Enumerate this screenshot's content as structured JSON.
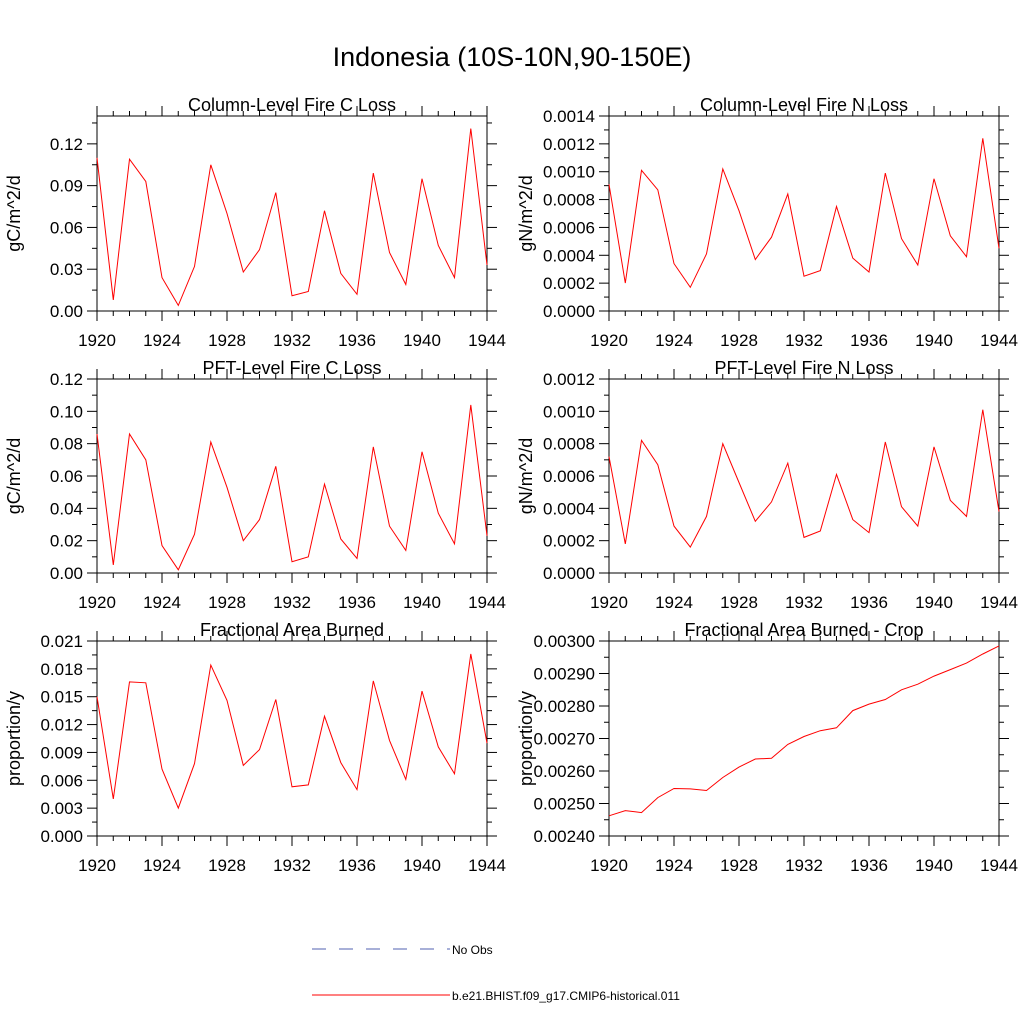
{
  "figure": {
    "title": "Indonesia (10S-10N,90-150E)",
    "series_color": "#ff0000",
    "obs_color": "#5060b0"
  },
  "legend": {
    "obs_label": "No Obs",
    "model_label": "b.e21.BHIST.f09_g17.CMIP6-historical.011"
  },
  "chart_data": [
    {
      "type": "line",
      "title": "Column-Level Fire C Loss",
      "ylabel": "gC/m^2/d",
      "xlim": [
        1920,
        1944
      ],
      "ylim": [
        0,
        0.14
      ],
      "xticks": [
        "1920",
        "1924",
        "1928",
        "1932",
        "1936",
        "1940",
        "1944"
      ],
      "yticks": [
        "0.00",
        "0.03",
        "0.06",
        "0.09",
        "0.12"
      ],
      "x": [
        1920,
        1921,
        1922,
        1923,
        1924,
        1925,
        1926,
        1927,
        1928,
        1929,
        1930,
        1931,
        1932,
        1933,
        1934,
        1935,
        1936,
        1937,
        1938,
        1939,
        1940,
        1941,
        1942,
        1943,
        1944
      ],
      "series": [
        {
          "name": "b.e21.BHIST.f09_g17.CMIP6-historical.011",
          "values": [
            0.11,
            0.008,
            0.109,
            0.093,
            0.024,
            0.004,
            0.032,
            0.105,
            0.07,
            0.028,
            0.044,
            0.085,
            0.011,
            0.014,
            0.072,
            0.027,
            0.012,
            0.099,
            0.042,
            0.019,
            0.095,
            0.047,
            0.024,
            0.131,
            0.033
          ]
        }
      ]
    },
    {
      "type": "line",
      "title": "Column-Level Fire N Loss",
      "ylabel": "gN/m^2/d",
      "xlim": [
        1920,
        1944
      ],
      "ylim": [
        0,
        0.0014
      ],
      "xticks": [
        "1920",
        "1924",
        "1928",
        "1932",
        "1936",
        "1940",
        "1944"
      ],
      "yticks": [
        "0.0000",
        "0.0002",
        "0.0004",
        "0.0006",
        "0.0008",
        "0.0010",
        "0.0012",
        "0.0014"
      ],
      "x": [
        1920,
        1921,
        1922,
        1923,
        1924,
        1925,
        1926,
        1927,
        1928,
        1929,
        1930,
        1931,
        1932,
        1933,
        1934,
        1935,
        1936,
        1937,
        1938,
        1939,
        1940,
        1941,
        1942,
        1943,
        1944
      ],
      "series": [
        {
          "name": "b.e21.BHIST.f09_g17.CMIP6-historical.011",
          "values": [
            0.00091,
            0.0002,
            0.00101,
            0.00087,
            0.00034,
            0.00017,
            0.00041,
            0.00102,
            0.00072,
            0.00037,
            0.00053,
            0.00084,
            0.00025,
            0.00029,
            0.00075,
            0.00038,
            0.00028,
            0.00099,
            0.00052,
            0.00033,
            0.00095,
            0.00054,
            0.00039,
            0.00124,
            0.00045
          ]
        }
      ]
    },
    {
      "type": "line",
      "title": "PFT-Level Fire C Loss",
      "ylabel": "gC/m^2/d",
      "xlim": [
        1920,
        1944
      ],
      "ylim": [
        0,
        0.12
      ],
      "xticks": [
        "1920",
        "1924",
        "1928",
        "1932",
        "1936",
        "1940",
        "1944"
      ],
      "yticks": [
        "0.00",
        "0.02",
        "0.04",
        "0.06",
        "0.08",
        "0.10",
        "0.12"
      ],
      "x": [
        1920,
        1921,
        1922,
        1923,
        1924,
        1925,
        1926,
        1927,
        1928,
        1929,
        1930,
        1931,
        1932,
        1933,
        1934,
        1935,
        1936,
        1937,
        1938,
        1939,
        1940,
        1941,
        1942,
        1943,
        1944
      ],
      "series": [
        {
          "name": "b.e21.BHIST.f09_g17.CMIP6-historical.011",
          "values": [
            0.086,
            0.005,
            0.086,
            0.07,
            0.017,
            0.002,
            0.024,
            0.081,
            0.053,
            0.02,
            0.033,
            0.066,
            0.007,
            0.01,
            0.055,
            0.021,
            0.009,
            0.078,
            0.029,
            0.014,
            0.075,
            0.037,
            0.018,
            0.104,
            0.023
          ]
        }
      ]
    },
    {
      "type": "line",
      "title": "PFT-Level Fire N Loss",
      "ylabel": "gN/m^2/d",
      "xlim": [
        1920,
        1944
      ],
      "ylim": [
        0,
        0.0012
      ],
      "xticks": [
        "1920",
        "1924",
        "1928",
        "1932",
        "1936",
        "1940",
        "1944"
      ],
      "yticks": [
        "0.0000",
        "0.0002",
        "0.0004",
        "0.0006",
        "0.0008",
        "0.0010",
        "0.0012"
      ],
      "x": [
        1920,
        1921,
        1922,
        1923,
        1924,
        1925,
        1926,
        1927,
        1928,
        1929,
        1930,
        1931,
        1932,
        1933,
        1934,
        1935,
        1936,
        1937,
        1938,
        1939,
        1940,
        1941,
        1942,
        1943,
        1944
      ],
      "series": [
        {
          "name": "b.e21.BHIST.f09_g17.CMIP6-historical.011",
          "values": [
            0.00072,
            0.00018,
            0.00082,
            0.00067,
            0.00029,
            0.00016,
            0.00035,
            0.0008,
            0.00056,
            0.00032,
            0.00044,
            0.00068,
            0.00022,
            0.00026,
            0.00061,
            0.00033,
            0.00025,
            0.00081,
            0.00041,
            0.00029,
            0.00078,
            0.00045,
            0.00035,
            0.00101,
            0.00038
          ]
        }
      ]
    },
    {
      "type": "line",
      "title": "Fractional Area Burned",
      "ylabel": "proportion/y",
      "xlim": [
        1920,
        1944
      ],
      "ylim": [
        0,
        0.021
      ],
      "xticks": [
        "1920",
        "1924",
        "1928",
        "1932",
        "1936",
        "1940",
        "1944"
      ],
      "yticks": [
        "0.000",
        "0.003",
        "0.006",
        "0.009",
        "0.012",
        "0.015",
        "0.018",
        "0.021"
      ],
      "x": [
        1920,
        1921,
        1922,
        1923,
        1924,
        1925,
        1926,
        1927,
        1928,
        1929,
        1930,
        1931,
        1932,
        1933,
        1934,
        1935,
        1936,
        1937,
        1938,
        1939,
        1940,
        1941,
        1942,
        1943,
        1944
      ],
      "series": [
        {
          "name": "b.e21.BHIST.f09_g17.CMIP6-historical.011",
          "values": [
            0.015,
            0.004,
            0.0166,
            0.0165,
            0.0072,
            0.003,
            0.0078,
            0.0184,
            0.0146,
            0.0076,
            0.0093,
            0.0147,
            0.0053,
            0.0055,
            0.0129,
            0.0079,
            0.005,
            0.0167,
            0.0103,
            0.0061,
            0.0156,
            0.0096,
            0.0067,
            0.0196,
            0.01
          ]
        }
      ]
    },
    {
      "type": "line",
      "title": "Fractional Area Burned - Crop",
      "ylabel": "proportion/y",
      "xlim": [
        1920,
        1944
      ],
      "ylim": [
        0.0024,
        0.003
      ],
      "xticks": [
        "1920",
        "1924",
        "1928",
        "1932",
        "1936",
        "1940",
        "1944"
      ],
      "yticks": [
        "0.00240",
        "0.00250",
        "0.00260",
        "0.00270",
        "0.00280",
        "0.00290",
        "0.00300"
      ],
      "x": [
        1920,
        1921,
        1922,
        1923,
        1924,
        1925,
        1926,
        1927,
        1928,
        1929,
        1930,
        1931,
        1932,
        1933,
        1934,
        1935,
        1936,
        1937,
        1938,
        1939,
        1940,
        1941,
        1942,
        1943,
        1944
      ],
      "series": [
        {
          "name": "b.e21.BHIST.f09_g17.CMIP6-historical.011",
          "values": [
            0.002462,
            0.002478,
            0.002472,
            0.002518,
            0.002546,
            0.002545,
            0.00254,
            0.00258,
            0.002612,
            0.002637,
            0.002639,
            0.002682,
            0.002706,
            0.002724,
            0.002733,
            0.002786,
            0.002806,
            0.00282,
            0.00285,
            0.002867,
            0.002892,
            0.002912,
            0.002932,
            0.00296,
            0.002985
          ]
        }
      ]
    }
  ]
}
